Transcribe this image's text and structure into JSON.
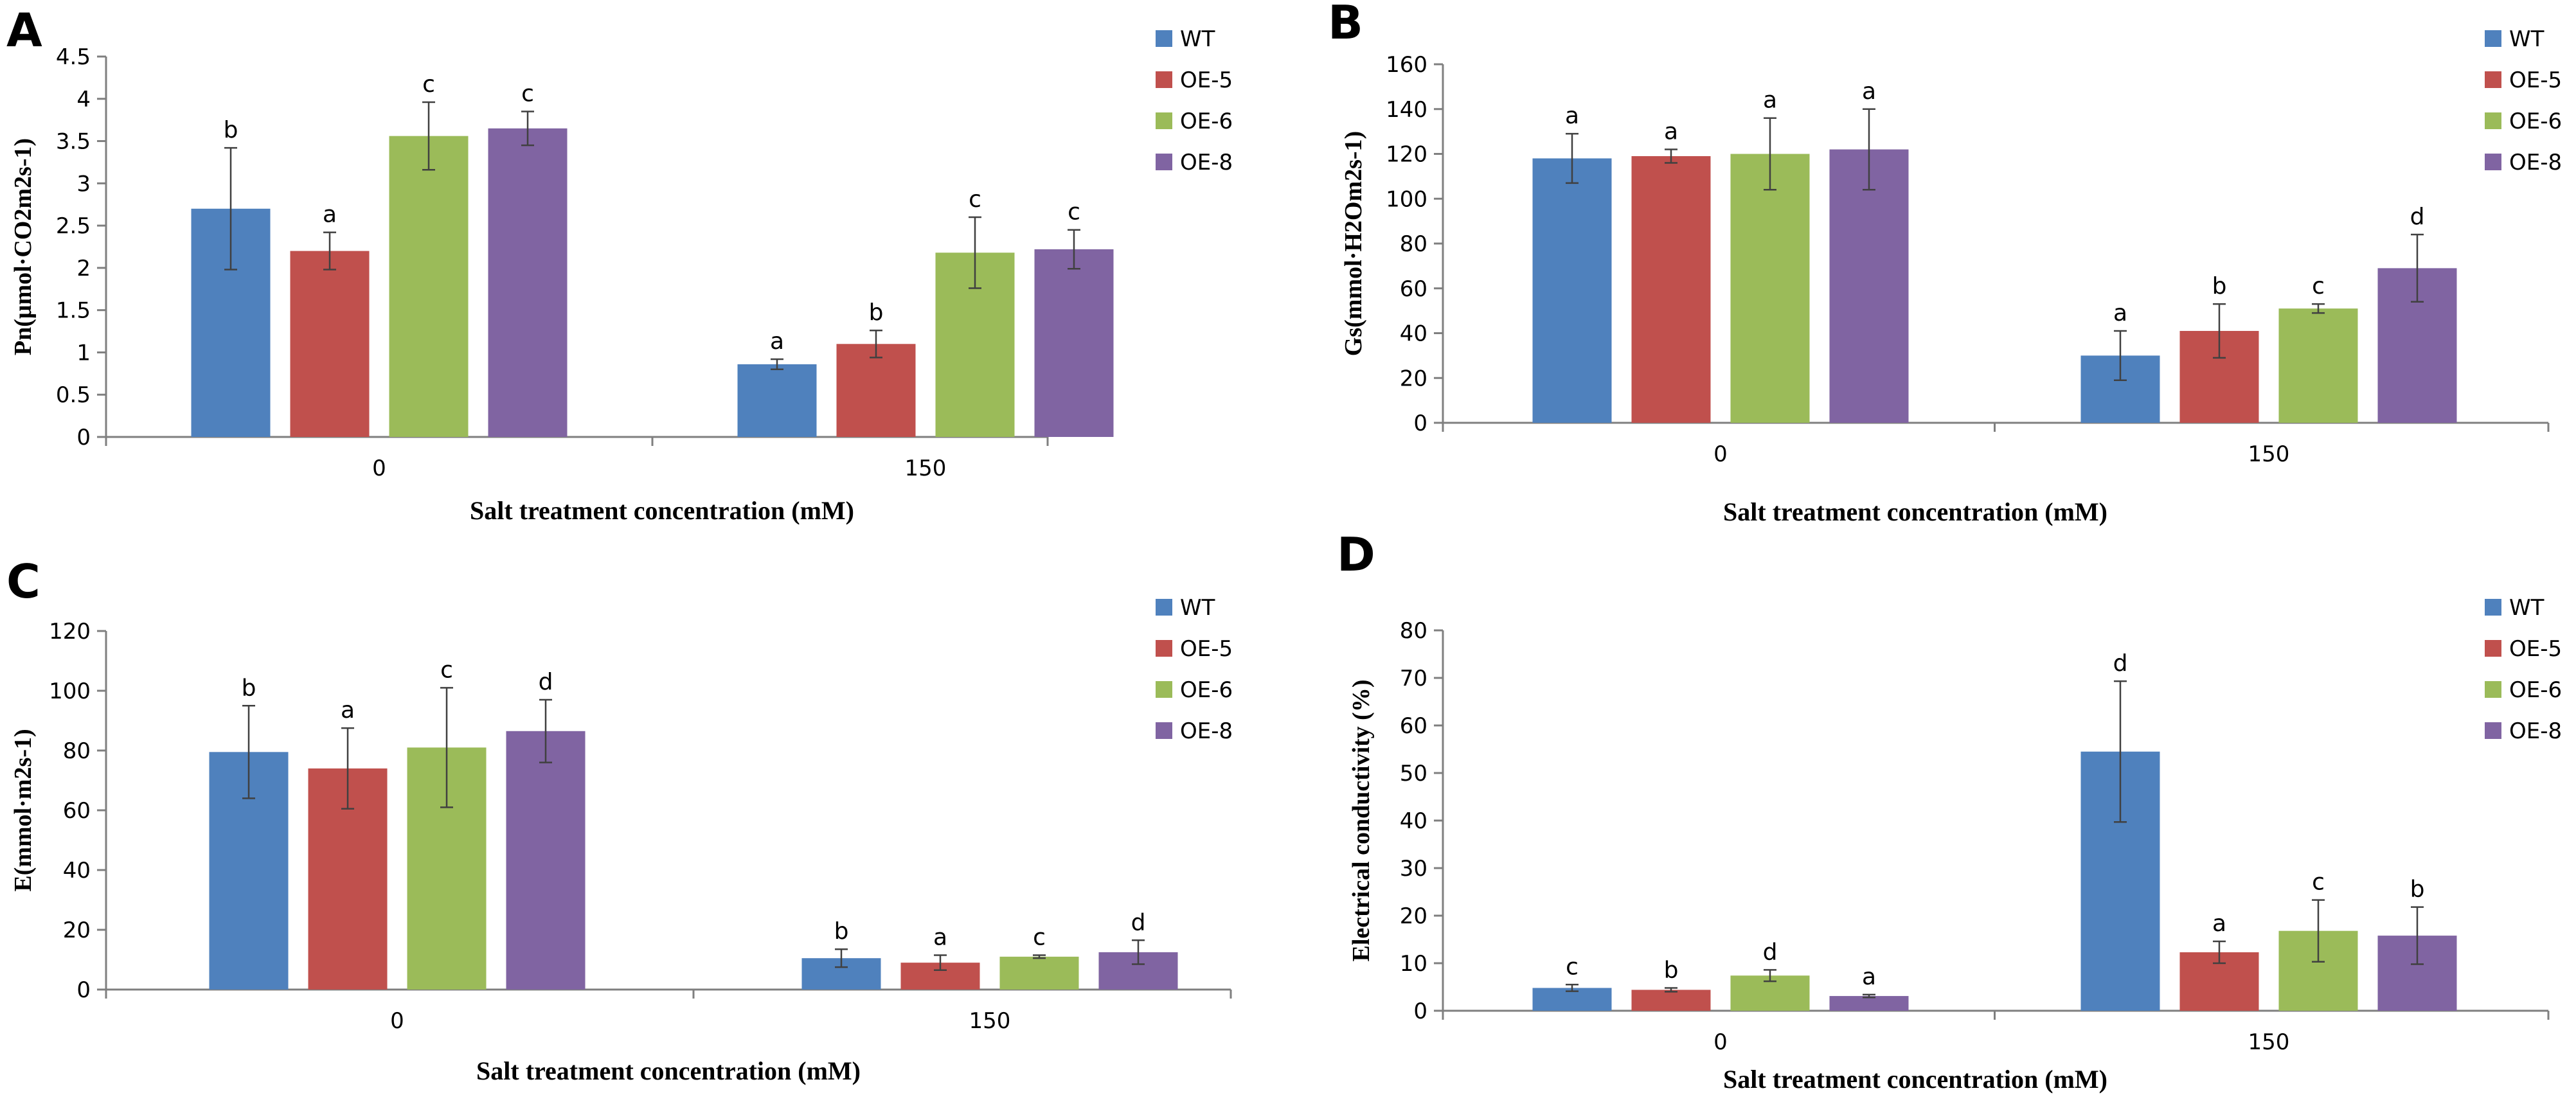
{
  "legend_colors": {
    "WT": "#4f81bd",
    "OE-5": "#c0504d",
    "OE-6": "#9bbb59",
    "OE-8": "#8064a2"
  },
  "chart_data": [
    {
      "panel": "A",
      "type": "bar",
      "categories": [
        "0",
        "150"
      ],
      "series": [
        {
          "name": "WT",
          "values": [
            2.7,
            0.86
          ],
          "errors": [
            0.72,
            0.06
          ],
          "letters": [
            "b",
            "a"
          ]
        },
        {
          "name": "OE-5",
          "values": [
            2.2,
            1.1
          ],
          "errors": [
            0.22,
            0.16
          ],
          "letters": [
            "a",
            "b"
          ]
        },
        {
          "name": "OE-6",
          "values": [
            3.56,
            2.18
          ],
          "errors": [
            0.4,
            0.42
          ],
          "letters": [
            "c",
            "c"
          ]
        },
        {
          "name": "OE-8",
          "values": [
            3.65,
            2.22
          ],
          "errors": [
            0.2,
            0.23
          ],
          "letters": [
            "c",
            "c"
          ]
        }
      ],
      "xlabel": "Salt treatment concentration (mM)",
      "ylabel": "Pn(μmol·CO2m2s-1)",
      "ylim": [
        0,
        4.5
      ],
      "yticks": [
        "0",
        "0.5",
        "1",
        "1.5",
        "2",
        "2.5",
        "3",
        "3.5",
        "4",
        "4.5"
      ],
      "grid": false,
      "legend": "right"
    },
    {
      "panel": "B",
      "type": "bar",
      "categories": [
        "0",
        "150"
      ],
      "series": [
        {
          "name": "WT",
          "values": [
            118,
            30
          ],
          "errors": [
            11,
            11
          ],
          "letters": [
            "a",
            "a"
          ]
        },
        {
          "name": "OE-5",
          "values": [
            119,
            41
          ],
          "errors": [
            3,
            12
          ],
          "letters": [
            "a",
            "b"
          ]
        },
        {
          "name": "OE-6",
          "values": [
            120,
            51
          ],
          "errors": [
            16,
            2
          ],
          "letters": [
            "a",
            "c"
          ]
        },
        {
          "name": "OE-8",
          "values": [
            122,
            69
          ],
          "errors": [
            18,
            15
          ],
          "letters": [
            "a",
            "d"
          ]
        }
      ],
      "xlabel": "Salt treatment concentration (mM)",
      "ylabel": "Gs(mmol·H2Om2s-1)",
      "ylim": [
        0,
        160
      ],
      "yticks": [
        "0",
        "20",
        "40",
        "60",
        "80",
        "100",
        "120",
        "140",
        "160"
      ],
      "grid": false,
      "legend": "right"
    },
    {
      "panel": "C",
      "type": "bar",
      "categories": [
        "0",
        "150"
      ],
      "series": [
        {
          "name": "WT",
          "values": [
            79.5,
            10.5
          ],
          "errors": [
            15.5,
            3
          ],
          "letters": [
            "b",
            "b"
          ]
        },
        {
          "name": "OE-5",
          "values": [
            74,
            9
          ],
          "errors": [
            13.5,
            2.5
          ],
          "letters": [
            "a",
            "a"
          ]
        },
        {
          "name": "OE-6",
          "values": [
            81,
            11
          ],
          "errors": [
            20,
            0.5
          ],
          "letters": [
            "c",
            "c"
          ]
        },
        {
          "name": "OE-8",
          "values": [
            86.5,
            12.5
          ],
          "errors": [
            10.5,
            4
          ],
          "letters": [
            "d",
            "d"
          ]
        }
      ],
      "xlabel": "Salt treatment concentration (mM)",
      "ylabel": "E(mmol·m2s-1)",
      "ylim": [
        0,
        120
      ],
      "yticks": [
        "0",
        "20",
        "40",
        "60",
        "80",
        "100",
        "120"
      ],
      "grid": false,
      "legend": "right"
    },
    {
      "panel": "D",
      "type": "bar",
      "categories": [
        "0",
        "150"
      ],
      "series": [
        {
          "name": "WT",
          "values": [
            4.8,
            54.5
          ],
          "errors": [
            0.7,
            14.8
          ],
          "letters": [
            "c",
            "d"
          ]
        },
        {
          "name": "OE-5",
          "values": [
            4.4,
            12.3
          ],
          "errors": [
            0.4,
            2.3
          ],
          "letters": [
            "b",
            "a"
          ]
        },
        {
          "name": "OE-6",
          "values": [
            7.4,
            16.8
          ],
          "errors": [
            1.2,
            6.5
          ],
          "letters": [
            "d",
            "c"
          ]
        },
        {
          "name": "OE-8",
          "values": [
            3.1,
            15.8
          ],
          "errors": [
            0.3,
            6
          ],
          "letters": [
            "a",
            "b"
          ]
        }
      ],
      "xlabel": "Salt treatment concentration (mM)",
      "ylabel": "Electrical conductivity (%)",
      "ylim": [
        0,
        80
      ],
      "yticks": [
        "0",
        "10",
        "20",
        "30",
        "40",
        "50",
        "60",
        "70",
        "80"
      ],
      "grid": false,
      "legend": "right"
    }
  ]
}
